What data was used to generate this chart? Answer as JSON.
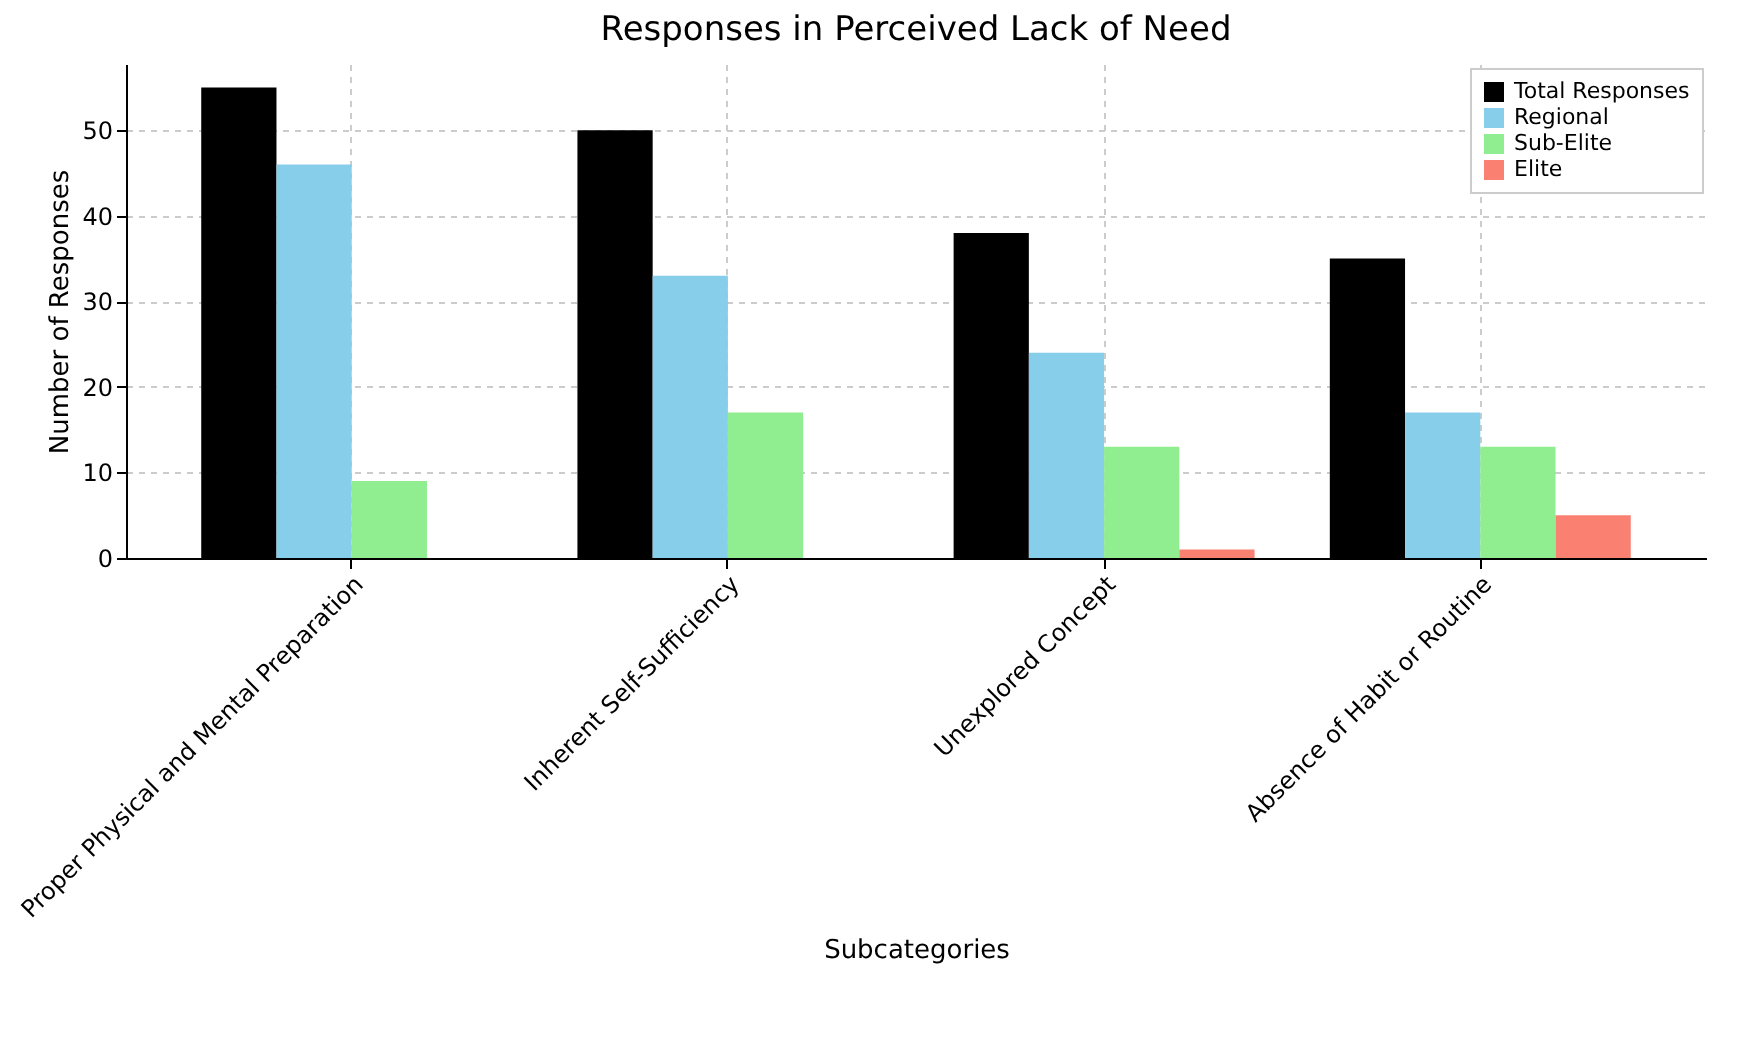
{
  "chart_data": {
    "type": "bar",
    "title": "Responses in Perceived Lack of Need",
    "xlabel": "Subcategories",
    "ylabel": "Number of Responses",
    "categories": [
      "Proper Physical and Mental Preparation",
      "Inherent Self-Sufficiency",
      "Unexplored Concept",
      "Absence of Habit or Routine"
    ],
    "series": [
      {
        "name": "Total Responses",
        "color": "#000000",
        "values": [
          55,
          50,
          38,
          35
        ]
      },
      {
        "name": "Regional",
        "color": "#87ceeb",
        "values": [
          46,
          33,
          24,
          17
        ]
      },
      {
        "name": "Sub-Elite",
        "color": "#90ee90",
        "values": [
          9,
          17,
          13,
          13
        ]
      },
      {
        "name": "Elite",
        "color": "#fa8072",
        "values": [
          0,
          0,
          1,
          5
        ]
      }
    ],
    "ylim": [
      0,
      57.75
    ],
    "yticks": [
      0,
      10,
      20,
      30,
      40,
      50
    ],
    "grid": true,
    "legend": "top right"
  }
}
